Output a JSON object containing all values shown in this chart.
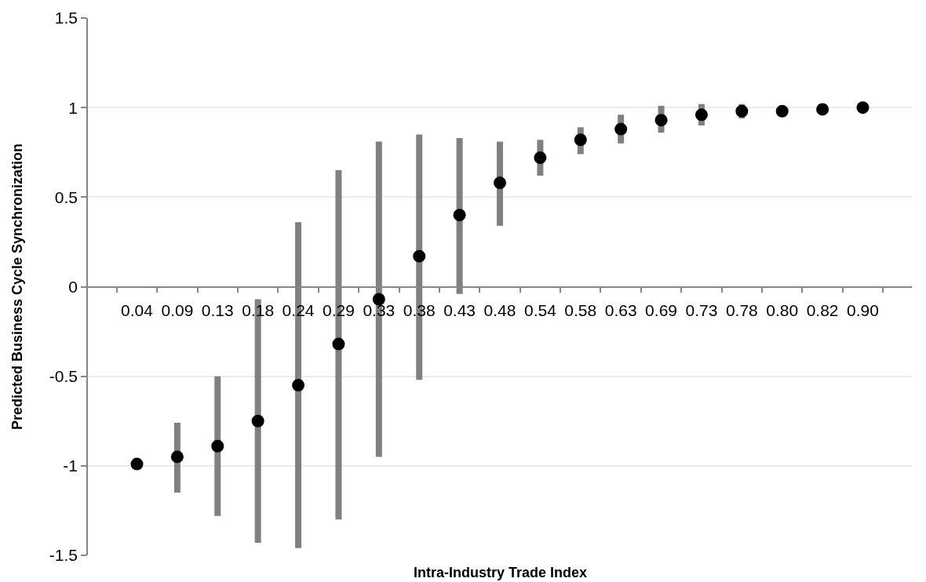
{
  "chart_data": {
    "type": "scatter",
    "xlabel": "Intra-Industry Trade Index",
    "ylabel": "Predicted Business Cycle Synchronization",
    "categories": [
      "0.04",
      "0.09",
      "0.13",
      "0.18",
      "0.24",
      "0.29",
      "0.33",
      "0.38",
      "0.43",
      "0.48",
      "0.54",
      "0.58",
      "0.63",
      "0.69",
      "0.73",
      "0.78",
      "0.80",
      "0.82",
      "0.90"
    ],
    "series": [
      {
        "color": "#000000",
        "values": [
          -0.99,
          -0.95,
          -0.89,
          -0.75,
          -0.55,
          -0.32,
          -0.07,
          0.17,
          0.4,
          0.58,
          0.72,
          0.82,
          0.88,
          0.93,
          0.96,
          0.98,
          0.98,
          0.99,
          1.0
        ],
        "errors": [
          null,
          [
            -1.15,
            -0.76
          ],
          [
            -1.28,
            -0.5
          ],
          [
            -1.43,
            -0.07
          ],
          [
            -1.46,
            0.36
          ],
          [
            -1.3,
            0.65
          ],
          [
            -0.95,
            0.81
          ],
          [
            -0.52,
            0.85
          ],
          [
            -0.04,
            0.83
          ],
          [
            0.34,
            0.81
          ],
          [
            0.62,
            0.82
          ],
          [
            0.74,
            0.89
          ],
          [
            0.8,
            0.96
          ],
          [
            0.86,
            1.01
          ],
          [
            0.9,
            1.02
          ],
          [
            0.94,
            1.02
          ],
          null,
          null,
          null
        ]
      }
    ],
    "ylim": [
      -1.5,
      1.5
    ],
    "yticks": [
      -1.5,
      -1,
      -0.5,
      0,
      0.5,
      1,
      1.5
    ],
    "grid": "y",
    "marker": "circle"
  }
}
